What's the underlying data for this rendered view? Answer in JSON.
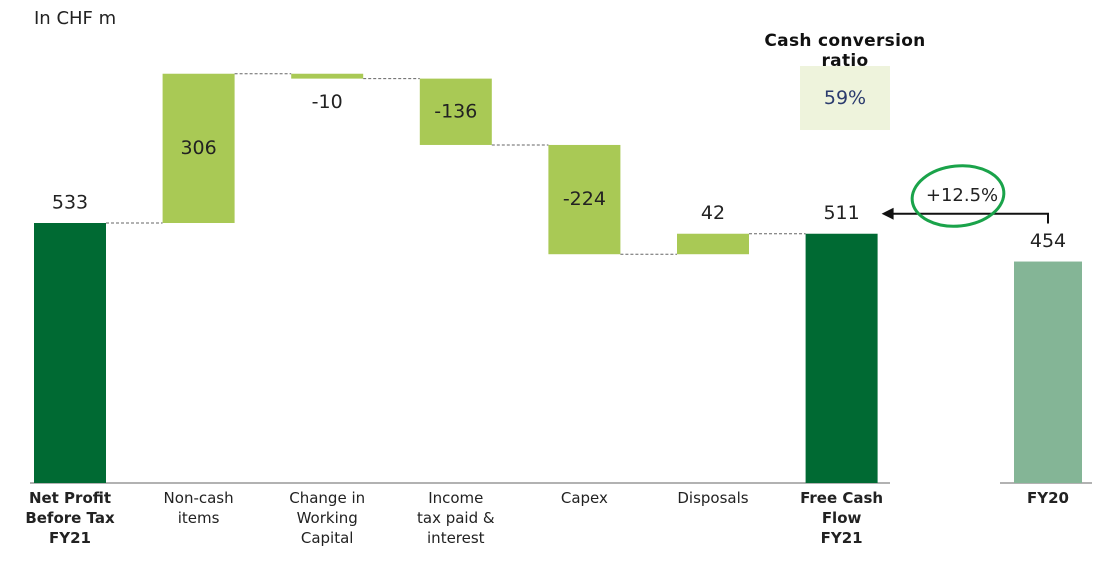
{
  "chart_data": {
    "type": "waterfall",
    "unit_note": "In CHF m",
    "categories": [
      "Net Profit\nBefore Tax\nFY21",
      "Non-cash\nitems",
      "Change in\nWorking\nCapital",
      "Income\ntax paid &\ninterest",
      "Capex",
      "Disposals",
      "Free Cash\nFlow\nFY21"
    ],
    "values": [
      533,
      306,
      -10,
      -136,
      -224,
      42,
      511
    ],
    "measures": [
      "total",
      "relative",
      "relative",
      "relative",
      "relative",
      "relative",
      "total"
    ],
    "total_color": "#006a33",
    "relative_color": "#a9c955",
    "comparison": {
      "category": "FY20",
      "value": 454,
      "color": "#84b596"
    },
    "change_label": "+12.5%",
    "ratio_title": "Cash conversion ratio",
    "ratio_label": "59%"
  }
}
